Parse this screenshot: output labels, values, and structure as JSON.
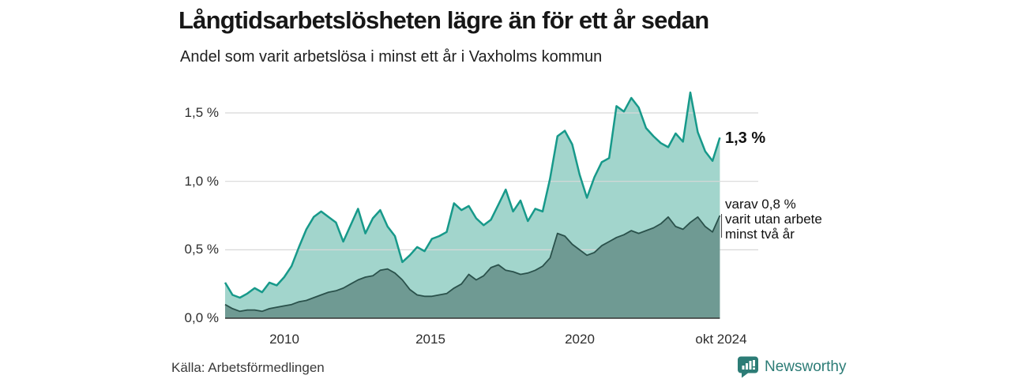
{
  "header": {
    "title": "Långtidsarbetslösheten lägre än för ett år sedan",
    "subtitle": "Andel som varit arbetslösa i minst ett år i Vaxholms kommun"
  },
  "chart_data": {
    "type": "area",
    "title": "Långtidsarbetslösheten lägre än för ett år sedan",
    "subtitle": "Andel som varit arbetslösa i minst ett år i Vaxholms kommun",
    "unit": "%",
    "xlabel": "",
    "ylabel": "",
    "grid": true,
    "xlim": [
      2008.0,
      2024.79
    ],
    "ylim": [
      0,
      1.72
    ],
    "x_start_year": 2008.0,
    "x_step_years": 0.25,
    "yticks": [
      {
        "value": 0.0,
        "label": "0,0 %"
      },
      {
        "value": 0.5,
        "label": "0,5 %"
      },
      {
        "value": 1.0,
        "label": "1,0 %"
      },
      {
        "value": 1.5,
        "label": "1,5 %"
      }
    ],
    "xticks": [
      {
        "value": 2010,
        "label": "2010"
      },
      {
        "value": 2015,
        "label": "2015"
      },
      {
        "value": 2020,
        "label": "2020"
      },
      {
        "value": 2024.79,
        "label": "okt 2024"
      }
    ],
    "series": [
      {
        "name": "arbetslosa-minst-ett-ar",
        "label": "Andel som varit arbetslösa i minst ett år",
        "latest_label": "1,3 %",
        "stroke": "#17998a",
        "fill": "#a2d5cc",
        "values": [
          0.26,
          0.17,
          0.15,
          0.18,
          0.22,
          0.19,
          0.26,
          0.24,
          0.3,
          0.38,
          0.52,
          0.65,
          0.74,
          0.78,
          0.74,
          0.7,
          0.56,
          0.68,
          0.8,
          0.62,
          0.73,
          0.79,
          0.67,
          0.6,
          0.41,
          0.46,
          0.52,
          0.49,
          0.58,
          0.6,
          0.63,
          0.84,
          0.79,
          0.82,
          0.73,
          0.68,
          0.72,
          0.83,
          0.94,
          0.78,
          0.86,
          0.71,
          0.8,
          0.78,
          1.02,
          1.33,
          1.37,
          1.27,
          1.05,
          0.88,
          1.03,
          1.14,
          1.17,
          1.55,
          1.51,
          1.61,
          1.54,
          1.39,
          1.33,
          1.28,
          1.25,
          1.35,
          1.29,
          1.65,
          1.36,
          1.22,
          1.15,
          1.32
        ]
      },
      {
        "name": "varav-utan-arbete-minst-tva-ar",
        "label": "varav utan arbete minst två år",
        "latest_label": "0,8 %",
        "stroke": "#2a514b",
        "fill": "#6f9a93",
        "values": [
          0.1,
          0.07,
          0.05,
          0.06,
          0.06,
          0.05,
          0.07,
          0.08,
          0.09,
          0.1,
          0.12,
          0.13,
          0.15,
          0.17,
          0.19,
          0.2,
          0.22,
          0.25,
          0.28,
          0.3,
          0.31,
          0.35,
          0.36,
          0.33,
          0.28,
          0.21,
          0.17,
          0.16,
          0.16,
          0.17,
          0.18,
          0.22,
          0.25,
          0.32,
          0.28,
          0.31,
          0.37,
          0.39,
          0.35,
          0.34,
          0.32,
          0.33,
          0.35,
          0.38,
          0.44,
          0.62,
          0.6,
          0.54,
          0.5,
          0.46,
          0.48,
          0.53,
          0.56,
          0.59,
          0.61,
          0.64,
          0.62,
          0.64,
          0.66,
          0.69,
          0.74,
          0.67,
          0.65,
          0.7,
          0.74,
          0.67,
          0.63,
          0.75
        ]
      }
    ],
    "legend_position": "right-annotations"
  },
  "annotations": {
    "latest_total": "1,3 %",
    "latest_two_year_lines": [
      "varav 0,8 %",
      "varit utan arbete",
      "minst två år"
    ]
  },
  "footer": {
    "source": "Källa: Arbetsförmedlingen",
    "brand": "Newsworthy"
  },
  "colors": {
    "accent_teal": "#17998a",
    "area_light": "#a2d5cc",
    "area_dark": "#6f9a93",
    "stroke_dark": "#2a514b",
    "gridline": "#d8d8d8",
    "baseline": "#333333",
    "brand_teal": "#2c7c76"
  }
}
